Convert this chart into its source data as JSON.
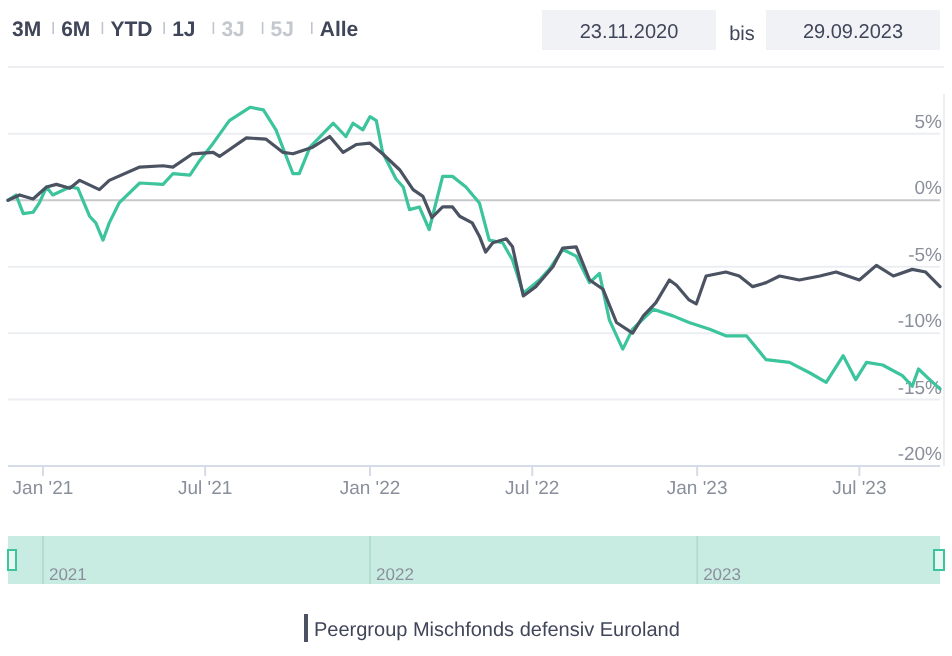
{
  "chart_data": {
    "type": "line",
    "annotations": [
      "3M",
      "6M",
      "YTD",
      "1J",
      "3J",
      "5J",
      "Alle",
      "23.11.2020",
      "bis",
      "29.09.2023",
      "2021",
      "2022",
      "2023"
    ],
    "xlim": [
      "2020-11-23",
      "2023-09-29"
    ],
    "xticks": [
      {
        "value": "2021-01-01",
        "label": "Jan '21"
      },
      {
        "value": "2021-07-01",
        "label": "Jul '21"
      },
      {
        "value": "2022-01-01",
        "label": "Jan '22"
      },
      {
        "value": "2022-07-01",
        "label": "Jul '22"
      },
      {
        "value": "2023-01-01",
        "label": "Jan '23"
      },
      {
        "value": "2023-07-01",
        "label": "Jul '23"
      }
    ],
    "ylim": [
      -20,
      8
    ],
    "yticks": [
      {
        "value": -20,
        "label": "-20%"
      },
      {
        "value": -15,
        "label": "-15%"
      },
      {
        "value": -10,
        "label": "-10%"
      },
      {
        "value": -5,
        "label": "-5%"
      },
      {
        "value": 0,
        "label": "0%"
      },
      {
        "value": 5,
        "label": "5%"
      }
    ],
    "grid": "y",
    "legend": "bottom",
    "marker": "none",
    "line_style": "solid",
    "series": [
      {
        "color": "#3cc49c",
        "x": [
          "2020-11-23",
          "2020-12-02",
          "2020-12-10",
          "2020-12-21",
          "2020-12-28",
          "2021-01-05",
          "2021-01-12",
          "2021-01-31",
          "2021-02-09",
          "2021-02-22",
          "2021-03-01",
          "2021-03-09",
          "2021-03-16",
          "2021-03-27",
          "2021-04-19",
          "2021-05-15",
          "2021-05-26",
          "2021-06-14",
          "2021-06-25",
          "2021-07-10",
          "2021-07-28",
          "2021-08-20",
          "2021-09-04",
          "2021-09-18",
          "2021-10-07",
          "2021-10-14",
          "2021-10-26",
          "2021-11-21",
          "2021-12-05",
          "2021-12-13",
          "2021-12-24",
          "2022-01-01",
          "2022-01-08",
          "2022-01-15",
          "2022-01-30",
          "2022-02-07",
          "2022-02-14",
          "2022-02-25",
          "2022-03-08",
          "2022-03-23",
          "2022-04-03",
          "2022-04-18",
          "2022-05-03",
          "2022-05-14",
          "2022-05-29",
          "2022-06-09",
          "2022-06-21",
          "2022-07-09",
          "2022-07-20",
          "2022-08-04",
          "2022-08-19",
          "2022-09-03",
          "2022-09-14",
          "2022-09-25",
          "2022-10-10",
          "2022-10-21",
          "2022-11-13",
          "2022-12-05",
          "2022-12-23",
          "2023-01-15",
          "2023-02-02",
          "2023-02-25",
          "2023-03-19",
          "2023-04-14",
          "2023-05-07",
          "2023-05-25",
          "2023-06-13",
          "2023-06-27",
          "2023-07-09",
          "2023-07-27",
          "2023-08-18",
          "2023-08-29",
          "2023-09-05",
          "2023-09-16",
          "2023-09-29"
        ],
        "values": [
          0,
          0.4,
          -1.0,
          -0.9,
          -0.2,
          1.0,
          0.4,
          1.0,
          0.9,
          -1.2,
          -1.7,
          -3.0,
          -1.7,
          -0.2,
          1.3,
          1.2,
          2.0,
          1.9,
          3.0,
          4.3,
          6.0,
          7.0,
          6.8,
          5.3,
          2.0,
          2.0,
          4.0,
          5.8,
          4.8,
          5.8,
          5.3,
          6.3,
          6.0,
          3.6,
          1.6,
          1.0,
          -0.7,
          -0.5,
          -2.2,
          1.8,
          1.8,
          1.0,
          -0.2,
          -3.0,
          -3.2,
          -4.5,
          -7.0,
          -6.0,
          -5.2,
          -3.7,
          -4.2,
          -6.2,
          -5.5,
          -9.0,
          -11.2,
          -9.7,
          -8.2,
          -8.7,
          -9.2,
          -9.7,
          -10.2,
          -10.2,
          -12.0,
          -12.2,
          -13.0,
          -13.7,
          -11.7,
          -13.5,
          -12.2,
          -12.4,
          -13.2,
          -14.0,
          -12.7,
          -13.4,
          -14.2
        ]
      },
      {
        "name": "Peergroup Mischfonds defensiv Euroland",
        "color": "#4b5262",
        "x": [
          "2020-11-23",
          "2020-12-06",
          "2020-12-21",
          "2021-01-05",
          "2021-01-16",
          "2021-01-31",
          "2021-02-11",
          "2021-03-05",
          "2021-03-16",
          "2021-04-19",
          "2021-05-15",
          "2021-05-26",
          "2021-06-17",
          "2021-07-10",
          "2021-07-17",
          "2021-08-16",
          "2021-09-07",
          "2021-09-26",
          "2021-10-07",
          "2021-10-29",
          "2021-11-17",
          "2021-12-02",
          "2021-12-17",
          "2022-01-01",
          "2022-01-15",
          "2022-02-03",
          "2022-02-18",
          "2022-03-01",
          "2022-03-11",
          "2022-03-23",
          "2022-04-03",
          "2022-04-11",
          "2022-04-25",
          "2022-05-03",
          "2022-05-10",
          "2022-05-18",
          "2022-06-02",
          "2022-06-09",
          "2022-06-21",
          "2022-07-05",
          "2022-07-24",
          "2022-08-04",
          "2022-08-19",
          "2022-09-03",
          "2022-09-18",
          "2022-10-03",
          "2022-10-21",
          "2022-11-02",
          "2022-11-16",
          "2022-12-01",
          "2022-12-09",
          "2022-12-23",
          "2022-12-31",
          "2023-01-11",
          "2023-02-02",
          "2023-02-17",
          "2023-03-04",
          "2023-03-19",
          "2023-04-03",
          "2023-04-25",
          "2023-05-18",
          "2023-06-05",
          "2023-07-01",
          "2023-07-20",
          "2023-08-08",
          "2023-08-29",
          "2023-09-13",
          "2023-09-29"
        ],
        "values": [
          0,
          0.4,
          0.1,
          1.0,
          1.2,
          0.9,
          1.5,
          0.8,
          1.5,
          2.5,
          2.6,
          2.5,
          3.5,
          3.6,
          3.3,
          4.7,
          4.6,
          3.6,
          3.5,
          4.0,
          4.8,
          3.6,
          4.2,
          4.3,
          3.5,
          2.3,
          0.8,
          0.3,
          -1.3,
          -0.5,
          -0.5,
          -1.2,
          -1.7,
          -2.7,
          -3.9,
          -3.2,
          -2.9,
          -3.5,
          -7.2,
          -6.5,
          -5.0,
          -3.6,
          -3.5,
          -6.0,
          -6.7,
          -9.2,
          -10.0,
          -8.7,
          -7.7,
          -6.0,
          -6.4,
          -7.5,
          -7.8,
          -5.7,
          -5.4,
          -5.7,
          -6.5,
          -6.2,
          -5.7,
          -6.0,
          -5.7,
          -5.4,
          -6.0,
          -4.9,
          -5.7,
          -5.2,
          -5.4,
          -6.5
        ]
      }
    ]
  }
}
